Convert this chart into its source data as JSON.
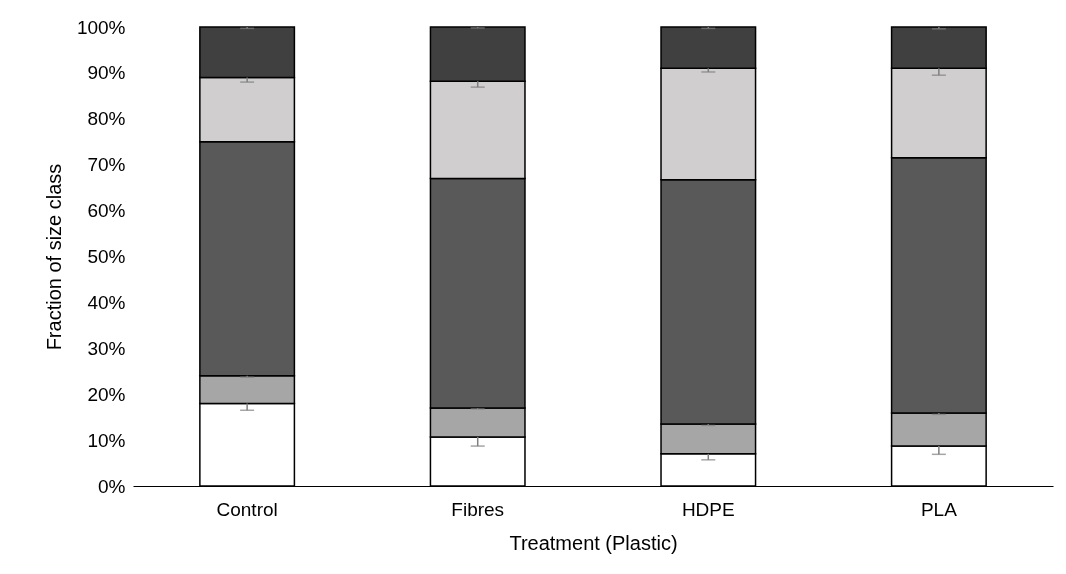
{
  "chart_data": {
    "type": "bar",
    "stacked": true,
    "xlabel": "Treatment (Plastic)",
    "ylabel": "Fraction of size class",
    "categories": [
      "Control",
      "Fibres",
      "HDPE",
      "PLA"
    ],
    "series": [
      {
        "color": "#ffffff",
        "values": [
          18,
          10.7,
          7,
          8.7
        ],
        "errors": [
          [
            16.5,
            18
          ],
          [
            8.7,
            10.7
          ],
          [
            5.7,
            7
          ],
          [
            6.9,
            8.7
          ]
        ]
      },
      {
        "color": "#a6a6a6",
        "values": [
          6,
          6.3,
          6.5,
          7.2
        ],
        "errors": [
          [
            23.7,
            24
          ],
          [
            16.8,
            17
          ],
          [
            13.2,
            13.5
          ],
          [
            15.6,
            15.9
          ]
        ]
      },
      {
        "color": "#595959",
        "values": [
          51,
          50,
          53.2,
          55.6
        ],
        "errors": [
          null,
          null,
          null,
          null
        ]
      },
      {
        "color": "#d0cece",
        "values": [
          14,
          21.2,
          24.3,
          19.5
        ],
        "errors": [
          [
            88,
            89
          ],
          [
            86.9,
            88.2
          ],
          [
            90.2,
            91
          ],
          [
            89.5,
            91
          ]
        ]
      },
      {
        "color": "#404040",
        "values": [
          11,
          11.8,
          9,
          9
        ],
        "errors": [
          [
            99.7,
            100
          ],
          [
            99.8,
            100
          ],
          [
            99.7,
            100
          ],
          [
            99.6,
            100
          ]
        ]
      }
    ],
    "ylim": [
      0,
      100
    ],
    "yticks": [
      {
        "value": 0,
        "label": "0%"
      },
      {
        "value": 10,
        "label": "10%"
      },
      {
        "value": 20,
        "label": "20%"
      },
      {
        "value": 30,
        "label": "30%"
      },
      {
        "value": 40,
        "label": "40%"
      },
      {
        "value": 50,
        "label": "50%"
      },
      {
        "value": 60,
        "label": "60%"
      },
      {
        "value": 70,
        "label": "70%"
      },
      {
        "value": 80,
        "label": "80%"
      },
      {
        "value": 90,
        "label": "90%"
      },
      {
        "value": 100,
        "label": "100%"
      }
    ],
    "grid": false,
    "legend": false
  }
}
